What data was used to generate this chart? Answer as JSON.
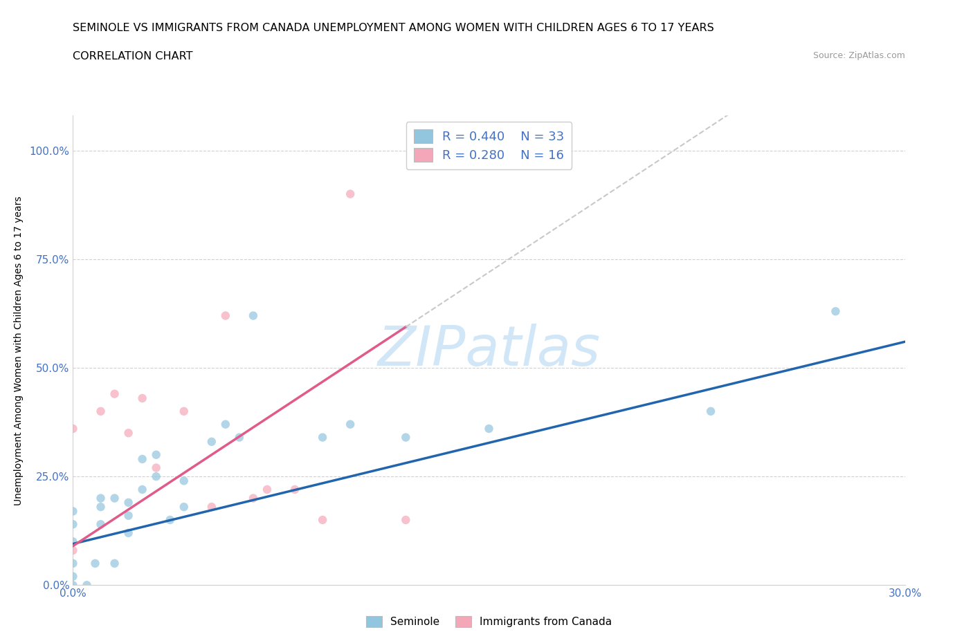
{
  "title_line1": "SEMINOLE VS IMMIGRANTS FROM CANADA UNEMPLOYMENT AMONG WOMEN WITH CHILDREN AGES 6 TO 17 YEARS",
  "title_line2": "CORRELATION CHART",
  "source_text": "Source: ZipAtlas.com",
  "ylabel": "Unemployment Among Women with Children Ages 6 to 17 years",
  "xlim": [
    0.0,
    0.3
  ],
  "ylim": [
    0.0,
    1.08
  ],
  "ytick_values": [
    0.0,
    0.25,
    0.5,
    0.75,
    1.0
  ],
  "xtick_values": [
    0.0,
    0.05,
    0.1,
    0.15,
    0.2,
    0.25,
    0.3
  ],
  "seminole_color": "#92c5de",
  "canada_color": "#f4a7b9",
  "trend_blue": "#2166ac",
  "trend_pink": "#e05a8a",
  "trend_gray": "#c8c8c8",
  "label_color": "#4472c4",
  "r_blue": 0.44,
  "n_blue": 33,
  "r_pink": 0.28,
  "n_pink": 16,
  "watermark": "ZIPatlas",
  "seminole_x": [
    0.0,
    0.0,
    0.0,
    0.0,
    0.0,
    0.0,
    0.005,
    0.008,
    0.01,
    0.01,
    0.01,
    0.015,
    0.015,
    0.02,
    0.02,
    0.02,
    0.025,
    0.025,
    0.03,
    0.03,
    0.035,
    0.04,
    0.04,
    0.05,
    0.055,
    0.06,
    0.065,
    0.09,
    0.1,
    0.12,
    0.15,
    0.23,
    0.275
  ],
  "seminole_y": [
    0.0,
    0.02,
    0.05,
    0.1,
    0.14,
    0.17,
    0.0,
    0.05,
    0.14,
    0.18,
    0.2,
    0.05,
    0.2,
    0.12,
    0.16,
    0.19,
    0.22,
    0.29,
    0.25,
    0.3,
    0.15,
    0.18,
    0.24,
    0.33,
    0.37,
    0.34,
    0.62,
    0.34,
    0.37,
    0.34,
    0.36,
    0.4,
    0.63
  ],
  "canada_x": [
    0.0,
    0.0,
    0.01,
    0.015,
    0.02,
    0.025,
    0.03,
    0.04,
    0.05,
    0.055,
    0.065,
    0.07,
    0.08,
    0.09,
    0.1,
    0.12
  ],
  "canada_y": [
    0.08,
    0.36,
    0.4,
    0.44,
    0.35,
    0.43,
    0.27,
    0.4,
    0.18,
    0.62,
    0.2,
    0.22,
    0.22,
    0.15,
    0.9,
    0.15
  ],
  "blue_intercept": 0.095,
  "blue_slope": 1.55,
  "pink_intercept": 0.09,
  "pink_slope": 4.2
}
